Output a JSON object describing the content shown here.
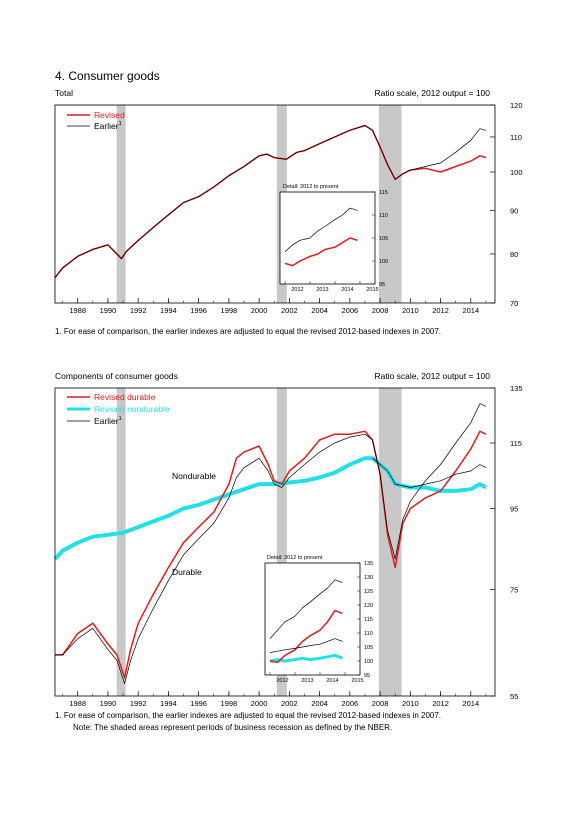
{
  "page": {
    "title": "4. Consumer goods"
  },
  "chart_data": [
    {
      "type": "line",
      "panel_label": "Total",
      "scale_note": "Ratio scale, 2012 output = 100",
      "log_scale": true,
      "x_ticks": [
        "1988",
        "1990",
        "1992",
        "1994",
        "1996",
        "1998",
        "2000",
        "2002",
        "2004",
        "2006",
        "2008",
        "2010",
        "2012",
        "2014"
      ],
      "xlim": [
        1986.5,
        2015.6
      ],
      "y_ticks": [
        70,
        80,
        90,
        100,
        110,
        120
      ],
      "ylim": [
        70,
        120
      ],
      "recessions": [
        [
          1990.58,
          1991.17
        ],
        [
          2001.17,
          2001.83
        ],
        [
          2007.92,
          2009.42
        ]
      ],
      "legend": {
        "placement": "top-left",
        "entries": [
          {
            "label": "Revised",
            "color": "#e31a1c"
          },
          {
            "label": "Earlier",
            "superscript": "1",
            "color": "#000000"
          }
        ]
      },
      "series": [
        {
          "name": "Revised",
          "color": "#e31a1c",
          "x": [
            1986.5,
            1987,
            1988,
            1989,
            1990,
            1990.9,
            1991.2,
            1992,
            1993,
            1994,
            1995,
            1996,
            1997,
            1998,
            1999,
            2000,
            2000.5,
            2001,
            2001.8,
            2002.5,
            2003,
            2004,
            2005,
            2006,
            2007,
            2007.5,
            2008,
            2008.5,
            2009,
            2009.5,
            2010,
            2011,
            2012,
            2013,
            2014,
            2014.6,
            2015
          ],
          "y": [
            75,
            77,
            79.5,
            81,
            82,
            79,
            80.5,
            83,
            86,
            89,
            92,
            93.5,
            96,
            99,
            101.5,
            104.5,
            105,
            104,
            103.5,
            105.5,
            106,
            108,
            110,
            112,
            113.5,
            112,
            107,
            102,
            98,
            99.5,
            100.5,
            101,
            100,
            101.5,
            103,
            104.5,
            104
          ]
        },
        {
          "name": "Earlier",
          "color": "#000000",
          "x": [
            1986.5,
            1987,
            1988,
            1989,
            1990,
            1990.9,
            1991.2,
            1992,
            1993,
            1994,
            1995,
            1996,
            1997,
            1998,
            1999,
            2000,
            2000.5,
            2001,
            2001.8,
            2002.5,
            2003,
            2004,
            2005,
            2006,
            2007,
            2007.5,
            2008,
            2008.5,
            2009,
            2009.5,
            2010,
            2011,
            2012,
            2013,
            2014,
            2014.6,
            2015
          ],
          "y": [
            75,
            77,
            79.5,
            81,
            82,
            79,
            80.5,
            83,
            86,
            89,
            92,
            93.5,
            96,
            99,
            101.5,
            104.5,
            105,
            104,
            103.5,
            105.5,
            106,
            108,
            110,
            112,
            113.5,
            112,
            107,
            102,
            98,
            99.5,
            100.5,
            101.5,
            102.5,
            105.5,
            109,
            112.5,
            112
          ]
        }
      ],
      "inset": {
        "title": "Detail: 2012 to present",
        "x_ticks": [
          "2012",
          "2013",
          "2014",
          "2015"
        ],
        "xlim": [
          2011.8,
          2015.6
        ],
        "y_ticks": [
          95,
          100,
          105,
          110,
          115
        ],
        "ylim": [
          95,
          115
        ],
        "series": [
          {
            "name": "Revised",
            "color": "#e31a1c",
            "x": [
              2012,
              2012.3,
              2012.6,
              2013,
              2013.3,
              2013.6,
              2014,
              2014.3,
              2014.6,
              2014.9
            ],
            "y": [
              99.5,
              99,
              100,
              101,
              101.5,
              102.5,
              103,
              104,
              105,
              104.5
            ]
          },
          {
            "name": "Earlier",
            "color": "#000000",
            "x": [
              2012,
              2012.3,
              2012.6,
              2013,
              2013.3,
              2013.6,
              2014,
              2014.3,
              2014.6,
              2014.9
            ],
            "y": [
              102,
              103.5,
              104.5,
              105,
              106.5,
              107.5,
              109,
              110,
              111.5,
              111
            ]
          }
        ]
      },
      "footnote": "1. For ease of comparison, the earlier indexes are adjusted to equal the revised 2012-based indexes in 2007."
    },
    {
      "type": "line",
      "panel_label": "Components of consumer goods",
      "scale_note": "Ratio scale, 2012 output = 100",
      "log_scale": true,
      "x_ticks": [
        "1988",
        "1990",
        "1992",
        "1994",
        "1996",
        "1998",
        "2000",
        "2002",
        "2004",
        "2006",
        "2008",
        "2010",
        "2012",
        "2014"
      ],
      "xlim": [
        1986.5,
        2015.6
      ],
      "y_ticks": [
        55,
        75,
        95,
        115,
        135
      ],
      "ylim": [
        55,
        135
      ],
      "recessions": [
        [
          1990.58,
          1991.17
        ],
        [
          2001.17,
          2001.83
        ],
        [
          2007.92,
          2009.42
        ]
      ],
      "legend": {
        "placement": "top-left",
        "entries": [
          {
            "label": "Revised durable",
            "color": "#e31a1c"
          },
          {
            "label": "Revised nondurable",
            "color": "#22e0e8"
          },
          {
            "label": "Earlier",
            "superscript": "1",
            "color": "#000000"
          }
        ]
      },
      "annotations": [
        "Nondurable",
        "Durable"
      ],
      "series": [
        {
          "name": "Revised durable",
          "color": "#e31a1c",
          "x": [
            1986.5,
            1987,
            1988,
            1989,
            1990,
            1990.6,
            1991.1,
            1991.5,
            1992,
            1993,
            1994,
            1995,
            1996,
            1997,
            1998,
            1998.5,
            1999,
            2000,
            2000.6,
            2001,
            2001.5,
            2002,
            2003,
            2004,
            2005,
            2006,
            2007,
            2007.5,
            2008,
            2008.5,
            2009,
            2009.5,
            2010,
            2011,
            2012,
            2013,
            2014,
            2014.6,
            2015
          ],
          "y": [
            62,
            62,
            66,
            68,
            64,
            62,
            58,
            63,
            68,
            74,
            80,
            86,
            90,
            94,
            102,
            110,
            112,
            114,
            108,
            103,
            102,
            106,
            110,
            116,
            118,
            118,
            119,
            116,
            105,
            88,
            80,
            91,
            95,
            98,
            100,
            106,
            113,
            119,
            118
          ]
        },
        {
          "name": "Revised nondurable",
          "color": "#22e0e8",
          "x": [
            1986.5,
            1987,
            1988,
            1989,
            1990,
            1991,
            1992,
            1993,
            1994,
            1995,
            1996,
            1997,
            1998,
            1999,
            2000,
            2001,
            2002,
            2003,
            2004,
            2005,
            2006,
            2007,
            2007.5,
            2008,
            2008.5,
            2009,
            2010,
            2011,
            2012,
            2013,
            2014,
            2014.6,
            2015
          ],
          "y": [
            82,
            84,
            86,
            87.5,
            88,
            88.5,
            90,
            91.5,
            93,
            95,
            96,
            97.5,
            99,
            100.5,
            102,
            102,
            102.5,
            103,
            104,
            105.5,
            108,
            110,
            110,
            108,
            106,
            102,
            101,
            101,
            100,
            100,
            100.5,
            102,
            101
          ]
        },
        {
          "name": "Earlier",
          "color": "#000000",
          "x": [
            1986.5,
            1987,
            1988,
            1989,
            1990,
            1990.6,
            1991.1,
            1991.5,
            1992,
            1993,
            1994,
            1995,
            1996,
            1997,
            1998,
            1998.5,
            1999,
            2000,
            2000.6,
            2001,
            2001.5,
            2002,
            2003,
            2004,
            2005,
            2006,
            2007,
            2007.5,
            2008,
            2008.5,
            2009,
            2009.5,
            2010,
            2011,
            2012,
            2013,
            2014,
            2014.6,
            2015
          ],
          "y": [
            62,
            62,
            65,
            67,
            63,
            61,
            57,
            61,
            65,
            71,
            77,
            83,
            87,
            91,
            98,
            104,
            107,
            110,
            106,
            102,
            101,
            104,
            108,
            112,
            115,
            117,
            118,
            116,
            105,
            89,
            82,
            92,
            97,
            103,
            108,
            115,
            122,
            129,
            128
          ]
        },
        {
          "name": "Earlier",
          "color": "#000000",
          "x": [
            2007.5,
            2008,
            2008.5,
            2009,
            2010,
            2011,
            2012,
            2013,
            2014,
            2014.6,
            2015
          ],
          "y": [
            110,
            108,
            106,
            102,
            101,
            102,
            103,
            105,
            106,
            108,
            107
          ]
        }
      ],
      "inset": {
        "title": "Detail: 2012 to present",
        "x_ticks": [
          "2012",
          "2013",
          "2014",
          "2015"
        ],
        "xlim": [
          2011.8,
          2015.6
        ],
        "y_ticks": [
          95,
          100,
          105,
          110,
          115,
          120,
          125,
          130,
          135
        ],
        "ylim": [
          95,
          135
        ],
        "series": [
          {
            "name": "Revised durable",
            "color": "#e31a1c",
            "x": [
              2012,
              2012.3,
              2012.6,
              2013,
              2013.3,
              2013.6,
              2014,
              2014.3,
              2014.6,
              2014.9
            ],
            "y": [
              100,
              99.5,
              102,
              104,
              107,
              109,
              111,
              114,
              118,
              117
            ]
          },
          {
            "name": "Revised nondurable",
            "color": "#22e0e8",
            "x": [
              2012,
              2012.3,
              2012.6,
              2013,
              2013.3,
              2013.6,
              2014,
              2014.3,
              2014.6,
              2014.9
            ],
            "y": [
              100,
              100.5,
              100,
              100.5,
              101,
              100.5,
              101,
              101.5,
              102,
              101
            ]
          },
          {
            "name": "Earlier",
            "color": "#000000",
            "x": [
              2012,
              2012.3,
              2012.6,
              2013,
              2013.3,
              2013.6,
              2014,
              2014.3,
              2014.6,
              2014.9
            ],
            "y": [
              108,
              111,
              114,
              116,
              119,
              121,
              124,
              126,
              129,
              128
            ]
          },
          {
            "name": "Earlier",
            "color": "#000000",
            "x": [
              2012,
              2012.3,
              2012.6,
              2013,
              2013.3,
              2013.6,
              2014,
              2014.3,
              2014.6,
              2014.9
            ],
            "y": [
              103,
              103.5,
              104,
              104.5,
              105,
              105.5,
              106,
              107,
              108,
              107
            ]
          }
        ]
      },
      "footnote": "1. For ease of comparison, the earlier indexes are adjusted to equal the revised 2012-based indexes in 2007.",
      "note": "Note: The shaded areas represent periods of business recession as defined by the NBER."
    }
  ]
}
